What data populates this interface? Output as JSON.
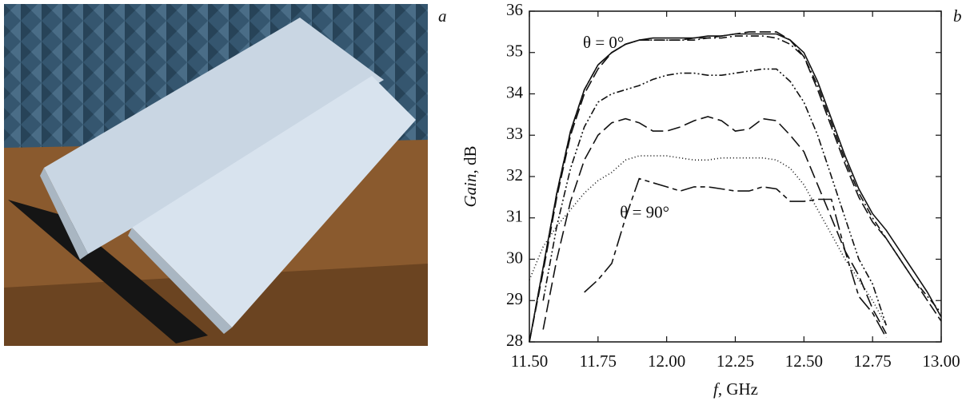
{
  "panel_labels": [
    "a",
    "b"
  ],
  "chart_data": {
    "type": "line",
    "y_label_italic": "Gain",
    "y_label_unit": ", dB",
    "x_label_italic": "f",
    "x_label_unit": ", GHz",
    "annotations": [
      {
        "text": "θ = 0°",
        "x": 11.77,
        "y": 35.2
      },
      {
        "text": "θ = 90°",
        "x": 11.92,
        "y": 31.1
      }
    ],
    "x": [
      11.5,
      11.55,
      11.6,
      11.65,
      11.7,
      11.75,
      11.8,
      11.85,
      11.9,
      11.95,
      12.0,
      12.05,
      12.1,
      12.15,
      12.2,
      12.25,
      12.3,
      12.35,
      12.4,
      12.45,
      12.5,
      12.55,
      12.6,
      12.65,
      12.7,
      12.75,
      12.8,
      12.85,
      12.9,
      12.95,
      13.0
    ],
    "series": [
      {
        "color": "#111",
        "dash": "none",
        "values": [
          28.0,
          29.8,
          31.6,
          33.1,
          34.1,
          34.7,
          35.0,
          35.2,
          35.3,
          35.35,
          35.35,
          35.35,
          35.35,
          35.4,
          35.4,
          35.45,
          35.45,
          35.45,
          35.45,
          35.3,
          35.0,
          34.3,
          33.4,
          32.5,
          31.7,
          31.1,
          30.7,
          30.2,
          29.7,
          29.2,
          28.6
        ]
      },
      {
        "color": "#111",
        "dash": "14,5",
        "values": [
          28.0,
          29.7,
          31.5,
          33.0,
          34.0,
          34.6,
          35.0,
          35.2,
          35.3,
          35.3,
          35.3,
          35.3,
          35.35,
          35.35,
          35.4,
          35.45,
          35.5,
          35.5,
          35.5,
          35.3,
          34.9,
          34.1,
          33.2,
          32.3,
          31.5,
          30.9,
          30.5,
          30.0,
          29.5,
          29.0,
          28.5
        ]
      },
      {
        "color": "#111",
        "dash": "10,4,2,4",
        "values": [
          28.0,
          29.8,
          31.6,
          33.1,
          34.1,
          34.7,
          35.0,
          35.2,
          35.3,
          35.3,
          35.3,
          35.3,
          35.3,
          35.35,
          35.35,
          35.4,
          35.4,
          35.4,
          35.35,
          35.2,
          34.9,
          34.2,
          33.3,
          32.4,
          31.6,
          31.0,
          30.5,
          30.0,
          29.5,
          29.1,
          28.7
        ]
      },
      {
        "color": "#111",
        "dash": "9,3,2,3,2,3",
        "values": [
          null,
          29.0,
          30.8,
          32.2,
          33.2,
          33.8,
          34.0,
          34.1,
          34.2,
          34.35,
          34.45,
          34.5,
          34.5,
          34.45,
          34.45,
          34.5,
          34.55,
          34.6,
          34.6,
          34.3,
          33.8,
          33.0,
          32.0,
          31.0,
          30.0,
          29.4,
          28.4,
          null,
          null,
          null,
          null
        ]
      },
      {
        "color": "#111",
        "dash": "16,6",
        "values": [
          null,
          28.3,
          30.0,
          31.4,
          32.4,
          33.0,
          33.3,
          33.4,
          33.3,
          33.1,
          33.1,
          33.2,
          33.35,
          33.45,
          33.35,
          33.1,
          33.15,
          33.4,
          33.35,
          33.0,
          32.6,
          31.8,
          31.0,
          30.2,
          29.6,
          28.8,
          28.2,
          null,
          null,
          null,
          null
        ]
      },
      {
        "color": "#111",
        "dash": "1,3",
        "values": [
          29.5,
          30.3,
          30.8,
          31.2,
          31.6,
          31.9,
          32.1,
          32.4,
          32.5,
          32.5,
          32.5,
          32.45,
          32.4,
          32.4,
          32.45,
          32.45,
          32.45,
          32.45,
          32.4,
          32.2,
          31.8,
          31.2,
          30.6,
          30.0,
          29.5,
          29.0,
          28.4,
          null,
          null,
          null,
          null
        ]
      },
      {
        "color": "#111",
        "dash": "20,5,6,5",
        "values": [
          null,
          null,
          null,
          null,
          29.2,
          29.5,
          29.9,
          31.0,
          31.95,
          31.85,
          31.75,
          31.65,
          31.75,
          31.75,
          31.7,
          31.65,
          31.65,
          31.75,
          31.7,
          31.4,
          31.4,
          31.45,
          31.45,
          30.2,
          29.1,
          28.7,
          28.1,
          null,
          null,
          null,
          null
        ]
      }
    ],
    "xlim": [
      11.5,
      13.0
    ],
    "xticks": [
      {
        "value": 11.5,
        "label": "11.50"
      },
      {
        "value": 11.75,
        "label": "11.75"
      },
      {
        "value": 12.0,
        "label": "12.00"
      },
      {
        "value": 12.25,
        "label": "12.25"
      },
      {
        "value": 12.5,
        "label": "12.50"
      },
      {
        "value": 12.75,
        "label": "12.75"
      },
      {
        "value": 13.0,
        "label": "13.00"
      }
    ],
    "ylim": [
      28,
      36
    ],
    "yticks": [
      28,
      29,
      30,
      31,
      32,
      33,
      34,
      35,
      36
    ],
    "grid": false
  }
}
